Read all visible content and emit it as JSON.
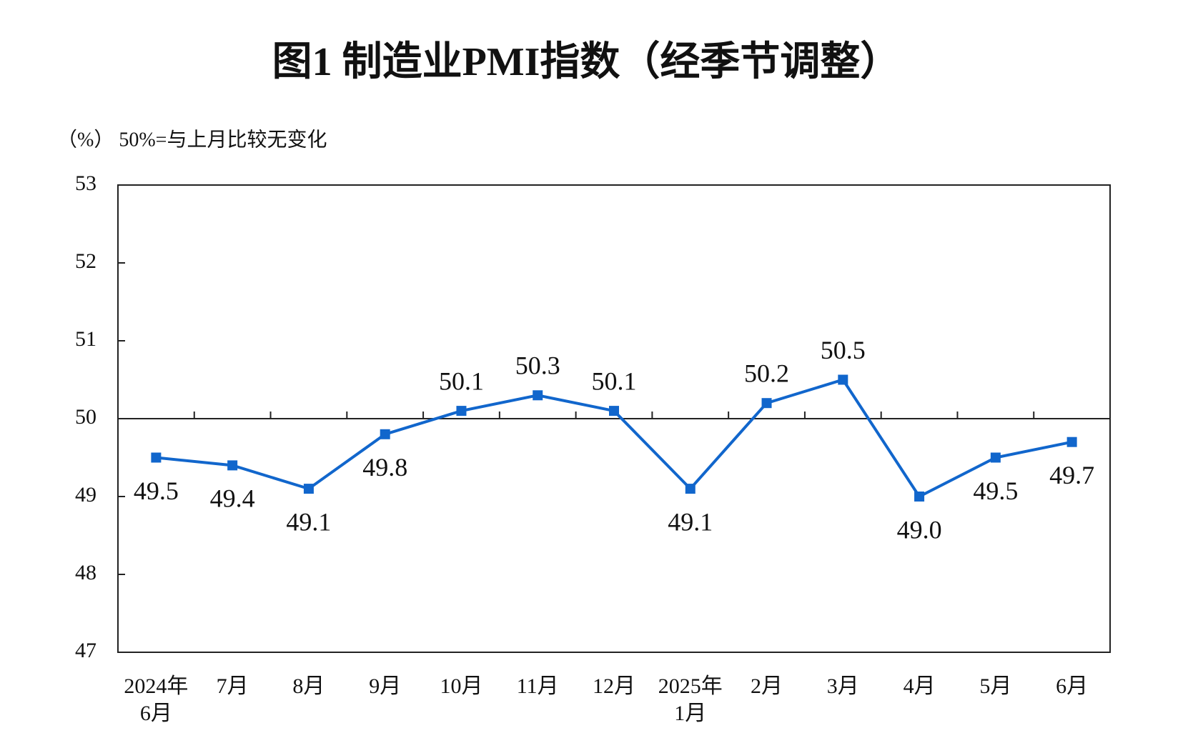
{
  "chart_data": {
    "type": "line",
    "title": "图1  制造业PMI指数（经季节调整）",
    "subtitle": "（%）  50%=与上月比较无变化",
    "categories": [
      "2024年\n6月",
      "7月",
      "8月",
      "9月",
      "10月",
      "11月",
      "12月",
      "2025年\n1月",
      "2月",
      "3月",
      "4月",
      "5月",
      "6月"
    ],
    "series": [
      {
        "name": "制造业PMI",
        "color": "#1166cc",
        "values": [
          49.5,
          49.4,
          49.1,
          49.8,
          50.1,
          50.3,
          50.1,
          49.1,
          50.2,
          50.5,
          49.0,
          49.5,
          49.7
        ],
        "value_labels": [
          "49.5",
          "49.4",
          "49.1",
          "49.8",
          "50.1",
          "50.3",
          "50.1",
          "49.1",
          "50.2",
          "50.5",
          "49.0",
          "49.5",
          "49.7"
        ]
      }
    ],
    "ylim": [
      47,
      53
    ],
    "yticks": [
      47,
      48,
      49,
      50,
      51,
      52,
      53
    ],
    "reference_line": 50
  }
}
